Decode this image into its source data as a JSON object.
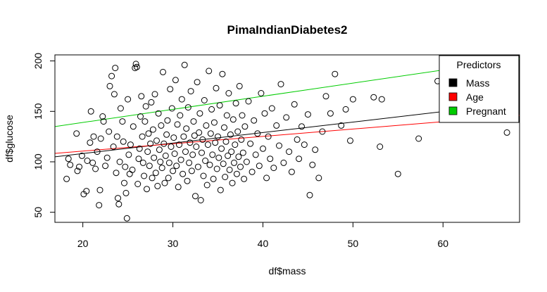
{
  "chart_data": {
    "type": "scatter",
    "title": "PimaIndianDiabetes2",
    "xlabel": "df$mass",
    "ylabel": "df$glucose",
    "xlim": [
      16.9,
      68.5
    ],
    "ylim": [
      40,
      206
    ],
    "x_ticks": [
      20,
      30,
      40,
      50,
      60
    ],
    "y_ticks": [
      50,
      100,
      150,
      200
    ],
    "grid": false,
    "legend": {
      "title": "Predictors",
      "position": "top-right",
      "entries": [
        {
          "label": "Mass",
          "color": "#000000"
        },
        {
          "label": "Age",
          "color": "#ff0000"
        },
        {
          "label": "Pregnant",
          "color": "#00cc00"
        }
      ]
    },
    "lines": [
      {
        "name": "Mass",
        "color": "#000000",
        "intercept": 87.4,
        "slope": 1.04
      },
      {
        "name": "Age",
        "color": "#ff0000",
        "intercept": 96.0,
        "slope": 0.73
      },
      {
        "name": "Pregnant",
        "color": "#00cc00",
        "intercept": 113.0,
        "slope": 1.3
      }
    ],
    "series": [
      {
        "marker": "open-circle",
        "points": [
          [
            18.2,
            83
          ],
          [
            18.4,
            103
          ],
          [
            18.6,
            97
          ],
          [
            19.3,
            128
          ],
          [
            19.4,
            91
          ],
          [
            19.6,
            95
          ],
          [
            19.9,
            106
          ],
          [
            20.1,
            68
          ],
          [
            20.4,
            71
          ],
          [
            20.5,
            101
          ],
          [
            20.8,
            119
          ],
          [
            20.9,
            150
          ],
          [
            21.1,
            99
          ],
          [
            21.2,
            125
          ],
          [
            21.4,
            93
          ],
          [
            21.6,
            110
          ],
          [
            21.8,
            57
          ],
          [
            21.9,
            72
          ],
          [
            22.0,
            123
          ],
          [
            22.2,
            145
          ],
          [
            22.3,
            140
          ],
          [
            22.5,
            96
          ],
          [
            22.7,
            104
          ],
          [
            22.9,
            130
          ],
          [
            23.0,
            175
          ],
          [
            23.2,
            185
          ],
          [
            23.4,
            115
          ],
          [
            23.5,
            167
          ],
          [
            23.6,
            193
          ],
          [
            23.7,
            89
          ],
          [
            23.8,
            125
          ],
          [
            23.9,
            64
          ],
          [
            24.0,
            58
          ],
          [
            24.1,
            100
          ],
          [
            24.2,
            153
          ],
          [
            24.4,
            140
          ],
          [
            24.5,
            120
          ],
          [
            24.6,
            79
          ],
          [
            24.7,
            95
          ],
          [
            24.8,
            69
          ],
          [
            24.9,
            44
          ],
          [
            25.0,
            162
          ],
          [
            25.1,
            107
          ],
          [
            25.2,
            88
          ],
          [
            25.3,
            117
          ],
          [
            25.5,
            92
          ],
          [
            25.6,
            135
          ],
          [
            25.8,
            193
          ],
          [
            25.9,
            197
          ],
          [
            26.0,
            194
          ],
          [
            26.1,
            78
          ],
          [
            26.2,
            103
          ],
          [
            26.3,
            113
          ],
          [
            26.4,
            145
          ],
          [
            26.5,
            165
          ],
          [
            26.6,
            125
          ],
          [
            26.7,
            99
          ],
          [
            26.8,
            86
          ],
          [
            26.9,
            140
          ],
          [
            27.0,
            155
          ],
          [
            27.1,
            73
          ],
          [
            27.2,
            110
          ],
          [
            27.3,
            128
          ],
          [
            27.4,
            96
          ],
          [
            27.5,
            118
          ],
          [
            27.6,
            159
          ],
          [
            27.7,
            84
          ],
          [
            27.8,
            132
          ],
          [
            27.9,
            104
          ],
          [
            28.0,
            167
          ],
          [
            28.1,
            89
          ],
          [
            28.2,
            121
          ],
          [
            28.3,
            76
          ],
          [
            28.4,
            148
          ],
          [
            28.5,
            112
          ],
          [
            28.6,
            100
          ],
          [
            28.7,
            136
          ],
          [
            28.8,
            94
          ],
          [
            28.9,
            189
          ],
          [
            29.0,
            118
          ],
          [
            29.1,
            79
          ],
          [
            29.2,
            106
          ],
          [
            29.3,
            127
          ],
          [
            29.4,
            141
          ],
          [
            29.5,
            84
          ],
          [
            29.6,
            99
          ],
          [
            29.7,
            172
          ],
          [
            29.8,
            115
          ],
          [
            29.9,
            153
          ],
          [
            30.0,
            91
          ],
          [
            30.1,
            124
          ],
          [
            30.2,
            108
          ],
          [
            30.3,
            181
          ],
          [
            30.4,
            96
          ],
          [
            30.5,
            137
          ],
          [
            30.6,
            75
          ],
          [
            30.7,
            117
          ],
          [
            30.8,
            146
          ],
          [
            30.9,
            102
          ],
          [
            31.0,
            162
          ],
          [
            31.1,
            88
          ],
          [
            31.2,
            125
          ],
          [
            31.3,
            196
          ],
          [
            31.4,
            110
          ],
          [
            31.5,
            133
          ],
          [
            31.6,
            81
          ],
          [
            31.7,
            154
          ],
          [
            31.8,
            99
          ],
          [
            31.9,
            119
          ],
          [
            32.0,
            170
          ],
          [
            32.1,
            91
          ],
          [
            32.2,
            107
          ],
          [
            32.3,
            140
          ],
          [
            32.4,
            126
          ],
          [
            32.5,
            66
          ],
          [
            32.6,
            115
          ],
          [
            32.7,
            179
          ],
          [
            32.8,
            95
          ],
          [
            32.9,
            129
          ],
          [
            33.0,
            148
          ],
          [
            33.1,
            62
          ],
          [
            33.2,
            109
          ],
          [
            33.3,
            122
          ],
          [
            33.4,
            86
          ],
          [
            33.5,
            161
          ],
          [
            33.6,
            101
          ],
          [
            33.7,
            136
          ],
          [
            33.8,
            77
          ],
          [
            33.9,
            117
          ],
          [
            34.0,
            190
          ],
          [
            34.1,
            97
          ],
          [
            34.2,
            128
          ],
          [
            34.3,
            152
          ],
          [
            34.4,
            107
          ],
          [
            34.5,
            83
          ],
          [
            34.6,
            139
          ],
          [
            34.7,
            119
          ],
          [
            34.8,
            173
          ],
          [
            34.9,
            93
          ],
          [
            35.0,
            125
          ],
          [
            35.1,
            104
          ],
          [
            35.2,
            156
          ],
          [
            35.3,
            72
          ],
          [
            35.4,
            113
          ],
          [
            35.5,
            187
          ],
          [
            35.6,
            98
          ],
          [
            35.7,
            134
          ],
          [
            35.8,
            85
          ],
          [
            35.9,
            120
          ],
          [
            36.0,
            146
          ],
          [
            36.1,
            106
          ],
          [
            36.2,
            168
          ],
          [
            36.3,
            92
          ],
          [
            36.4,
            127
          ],
          [
            36.5,
            110
          ],
          [
            36.6,
            79
          ],
          [
            36.7,
            142
          ],
          [
            36.8,
            99
          ],
          [
            36.9,
            117
          ],
          [
            37.0,
            158
          ],
          [
            37.1,
            88
          ],
          [
            37.2,
            130
          ],
          [
            37.3,
            105
          ],
          [
            37.4,
            175
          ],
          [
            37.5,
            95
          ],
          [
            37.6,
            122
          ],
          [
            37.7,
            146
          ],
          [
            37.8,
            109
          ],
          [
            37.9,
            83
          ],
          [
            38.0,
            135
          ],
          [
            38.2,
            100
          ],
          [
            38.4,
            160
          ],
          [
            38.6,
            118
          ],
          [
            38.8,
            90
          ],
          [
            39.0,
            141
          ],
          [
            39.2,
            107
          ],
          [
            39.4,
            128
          ],
          [
            39.6,
            96
          ],
          [
            39.8,
            168
          ],
          [
            40.0,
            113
          ],
          [
            40.2,
            148
          ],
          [
            40.4,
            84
          ],
          [
            40.6,
            125
          ],
          [
            40.8,
            103
          ],
          [
            41.0,
            153
          ],
          [
            41.2,
            94
          ],
          [
            41.5,
            136
          ],
          [
            41.8,
            116
          ],
          [
            42.0,
            177
          ],
          [
            42.3,
            99
          ],
          [
            42.6,
            144
          ],
          [
            42.9,
            110
          ],
          [
            43.2,
            90
          ],
          [
            43.5,
            157
          ],
          [
            43.8,
            122
          ],
          [
            44.0,
            103
          ],
          [
            44.3,
            135
          ],
          [
            44.6,
            117
          ],
          [
            45.0,
            147
          ],
          [
            45.2,
            67
          ],
          [
            45.5,
            97
          ],
          [
            45.8,
            112
          ],
          [
            46.2,
            84
          ],
          [
            46.6,
            130
          ],
          [
            47.0,
            165
          ],
          [
            47.5,
            148
          ],
          [
            48.0,
            187
          ],
          [
            48.7,
            136
          ],
          [
            49.2,
            152
          ],
          [
            49.7,
            121
          ],
          [
            50.0,
            162
          ],
          [
            52.3,
            164
          ],
          [
            53.0,
            115
          ],
          [
            53.2,
            162
          ],
          [
            55.0,
            88
          ],
          [
            57.3,
            123
          ],
          [
            59.4,
            180
          ],
          [
            67.1,
            129
          ]
        ]
      }
    ]
  }
}
